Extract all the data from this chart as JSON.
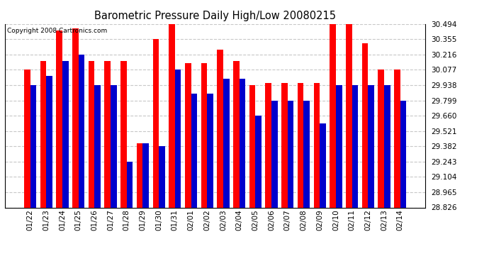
{
  "title": "Barometric Pressure Daily High/Low 20080215",
  "copyright": "Copyright 2008 Cartronics.com",
  "categories": [
    "01/22",
    "01/23",
    "01/24",
    "01/25",
    "01/26",
    "01/27",
    "01/28",
    "01/29",
    "01/30",
    "01/31",
    "02/01",
    "02/02",
    "02/03",
    "02/04",
    "02/05",
    "02/06",
    "02/07",
    "02/08",
    "02/09",
    "02/10",
    "02/11",
    "02/12",
    "02/13",
    "02/14"
  ],
  "highs": [
    30.077,
    30.16,
    30.433,
    30.454,
    30.16,
    30.16,
    30.16,
    29.41,
    30.355,
    30.494,
    30.138,
    30.138,
    30.26,
    30.16,
    29.938,
    29.96,
    29.96,
    29.96,
    29.96,
    30.494,
    30.494,
    30.316,
    30.077,
    30.077
  ],
  "lows": [
    29.938,
    30.02,
    30.16,
    30.216,
    29.938,
    29.938,
    29.243,
    29.41,
    29.382,
    30.077,
    29.86,
    29.86,
    29.993,
    29.993,
    29.66,
    29.799,
    29.799,
    29.799,
    29.59,
    29.938,
    29.938,
    29.938,
    29.938,
    29.799
  ],
  "y_ticks": [
    28.826,
    28.965,
    29.104,
    29.243,
    29.382,
    29.521,
    29.66,
    29.799,
    29.938,
    30.077,
    30.216,
    30.355,
    30.494
  ],
  "ymin": 28.826,
  "ymax": 30.494,
  "high_color": "#FF0000",
  "low_color": "#0000CC",
  "background_color": "#FFFFFF",
  "grid_color": "#C8C8C8",
  "bar_width": 0.38,
  "figwidth": 6.9,
  "figheight": 3.75,
  "dpi": 100
}
